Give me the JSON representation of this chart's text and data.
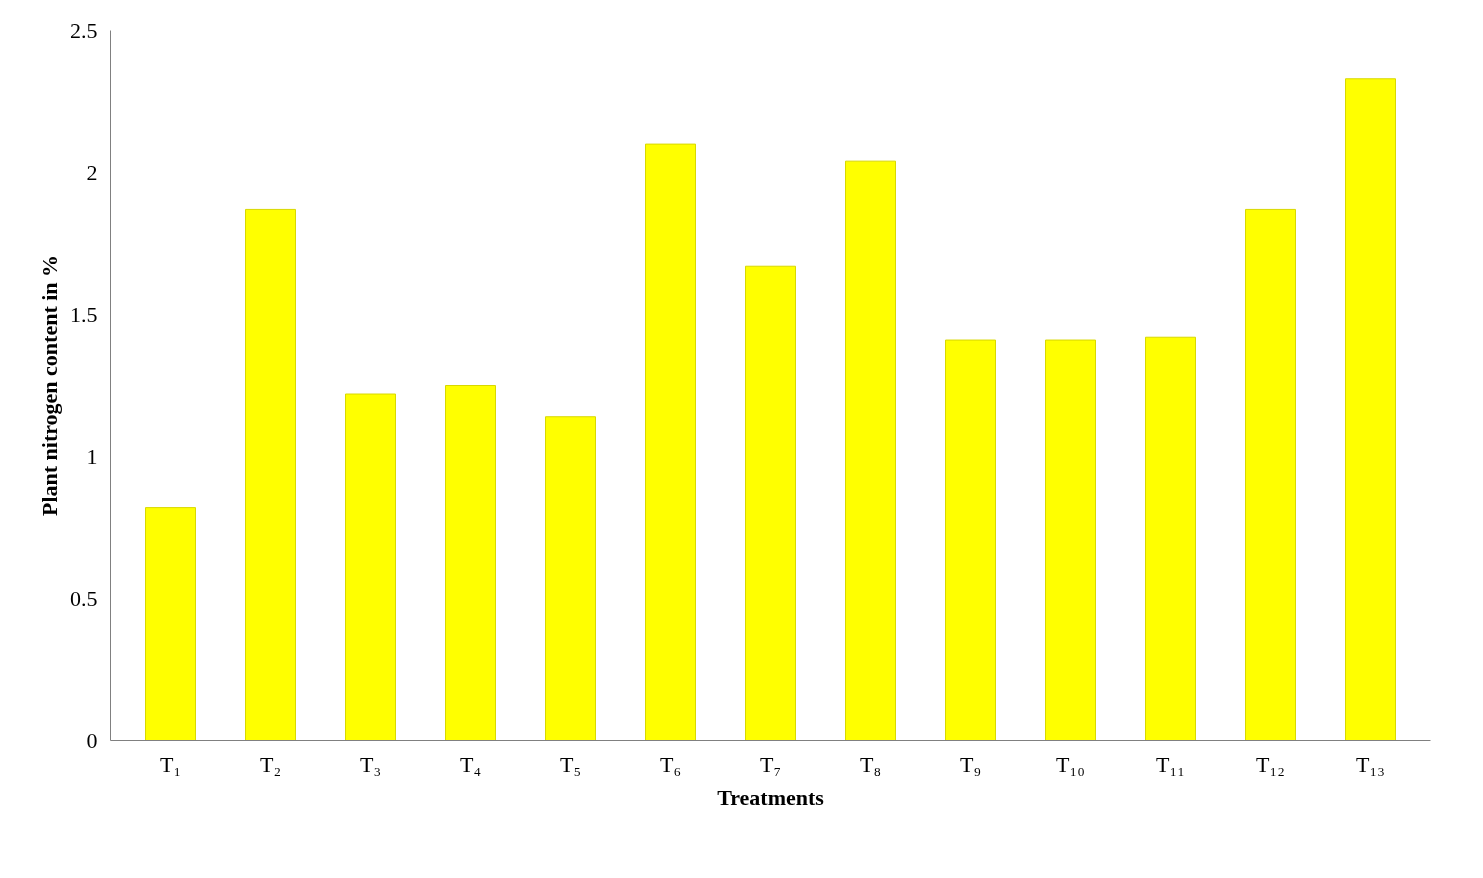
{
  "chart_data": {
    "type": "bar",
    "xlabel": "Treatments",
    "ylabel": "Plant nitrogen content in %",
    "categories": [
      "T₁",
      "T₂",
      "T₃",
      "T₄",
      "T₅",
      "T₆",
      "T₇",
      "T₈",
      "T₉",
      "T₁₀",
      "T₁₁",
      "T₁₂",
      "T₁₃"
    ],
    "values": [
      0.82,
      1.87,
      1.22,
      1.25,
      1.14,
      2.1,
      1.67,
      2.04,
      1.41,
      1.41,
      1.42,
      1.87,
      2.33
    ],
    "color": "#ffff00",
    "ylim": [
      0,
      2.5
    ],
    "yticks": [
      0,
      0.5,
      1,
      1.5,
      2,
      2.5
    ],
    "grid": false
  }
}
